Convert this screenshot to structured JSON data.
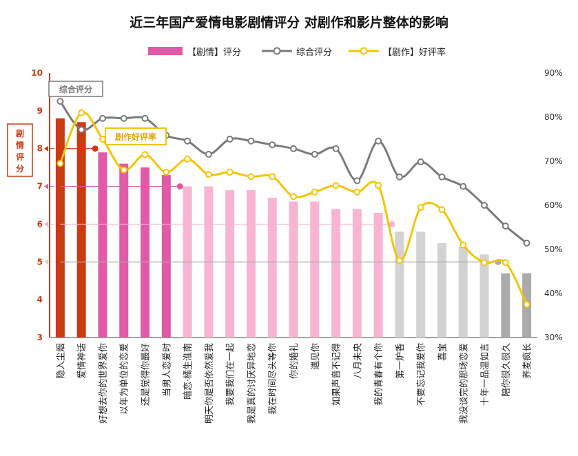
{
  "title": "近三年国产爱情电影剧情评分 对剧作和影片整体的影响",
  "legend": {
    "bar": "【剧情】评分",
    "gray_line": "综合评分",
    "yellow_line": "【剧作】好评率"
  },
  "annotations": {
    "gray_tag": "综合评分",
    "yellow_tag": "剧作好评率",
    "left_axis_label": [
      "剧",
      "情",
      "评",
      "分"
    ]
  },
  "colors": {
    "tier1": "#cc3a12",
    "tier2": "#e05aa8",
    "tier3": "#f7b5d3",
    "tier4": "#d3d3d3",
    "tier5": "#ababab",
    "gray_line": "#7a7a7a",
    "yellow_line": "#f5c400",
    "left_axis": "#cc3a12"
  },
  "chart_data": {
    "type": "bar",
    "categories": [
      "隐入尘烟",
      "爱情神话",
      "好想去你的世界爱你",
      "以年为单位的恋爱",
      "还是觉得你最好",
      "当男人恋爱时",
      "暗恋·橘生淮南",
      "明天你是否依然爱我",
      "我要我们在一起",
      "我是真的讨厌异地恋",
      "我在时间尽头等你",
      "你的婚礼",
      "遇见你",
      "如果声音不记得",
      "八月未央",
      "我的青春有个你",
      "第一炉香",
      "不要忘记我爱你",
      "喜宝",
      "我没谈完的那场恋爱",
      "十年一品温如言",
      "陪你很久很久",
      "荞麦疯长"
    ],
    "series": [
      {
        "name": "【剧情】评分",
        "type": "bar",
        "axis": "left",
        "values": [
          8.8,
          8.7,
          7.9,
          7.6,
          7.5,
          7.3,
          7.0,
          7.0,
          6.9,
          6.9,
          6.7,
          6.6,
          6.6,
          6.4,
          6.4,
          6.3,
          5.8,
          5.8,
          5.5,
          5.4,
          5.2,
          4.7,
          4.7
        ],
        "tiers": [
          1,
          1,
          2,
          2,
          2,
          2,
          3,
          3,
          3,
          3,
          3,
          3,
          3,
          3,
          3,
          3,
          4,
          4,
          4,
          4,
          4,
          5,
          5
        ]
      },
      {
        "name": "综合评分",
        "type": "line",
        "axis": "left",
        "values": [
          9.25,
          8.5,
          8.8,
          8.8,
          8.8,
          8.35,
          8.2,
          7.85,
          8.25,
          8.2,
          8.1,
          8.0,
          7.85,
          8.0,
          7.15,
          8.2,
          7.25,
          7.65,
          7.25,
          7.0,
          6.5,
          5.95,
          5.5
        ]
      },
      {
        "name": "【剧作】好评率",
        "type": "line",
        "axis": "right",
        "values": [
          69.5,
          81,
          75,
          68,
          71.5,
          67.5,
          70.5,
          67,
          67.5,
          66.5,
          66.5,
          62,
          63,
          64.5,
          63,
          64.5,
          47.5,
          59.5,
          59,
          51,
          47,
          47,
          37.5
        ]
      }
    ],
    "left_axis": {
      "ylim": [
        3,
        10
      ],
      "ticks": [
        "3",
        "4",
        "5",
        "6",
        "7",
        "8",
        "9",
        "10"
      ]
    },
    "right_axis": {
      "ylim": [
        30,
        90
      ],
      "ticks": [
        "30%",
        "40%",
        "50%",
        "60%",
        "70%",
        "80%",
        "90%"
      ]
    },
    "tier_markers": [
      8,
      7,
      6,
      5
    ],
    "grid": false,
    "legend_position": "top-center"
  }
}
